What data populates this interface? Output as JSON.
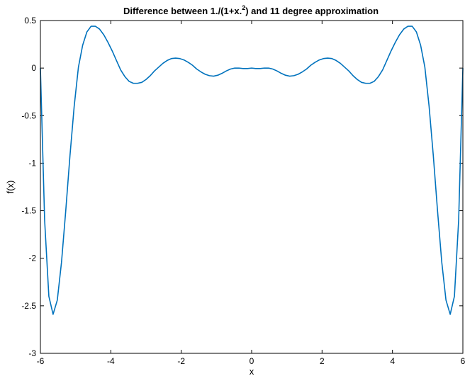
{
  "chart_data": {
    "type": "line",
    "title": {
      "prefix": "Difference between 1./(1+x.",
      "superscript": "2",
      "suffix": ") and 11 degree approximation"
    },
    "xlabel": "x",
    "ylabel": "f(x)",
    "xlim": [
      -6,
      6
    ],
    "ylim": [
      -3,
      0.5
    ],
    "xticks": [
      -6,
      -4,
      -2,
      0,
      2,
      4,
      6
    ],
    "xtick_labels": [
      "-6",
      "-4",
      "-2",
      "0",
      "2",
      "4",
      "6"
    ],
    "yticks": [
      -3,
      -2.5,
      -2,
      -1.5,
      -1,
      -0.5,
      0,
      0.5
    ],
    "ytick_labels": [
      "-3",
      "-2.5",
      "-2",
      "-1.5",
      "-1",
      "-0.5",
      "0",
      "0.5"
    ],
    "grid": false,
    "colors": {
      "line": "#0072BD",
      "axes": "#000000",
      "background": "#ffffff"
    },
    "series": [
      {
        "x": [
          -6,
          -5.88,
          -5.76,
          -5.64,
          -5.52,
          -5.4,
          -5.28,
          -5.16,
          -5.04,
          -4.92,
          -4.8,
          -4.68,
          -4.56,
          -4.44,
          -4.32,
          -4.2,
          -4.08,
          -3.96,
          -3.84,
          -3.72,
          -3.6,
          -3.48,
          -3.36,
          -3.24,
          -3.12,
          -3.0,
          -2.88,
          -2.76,
          -2.64,
          -2.52,
          -2.4,
          -2.28,
          -2.16,
          -2.04,
          -1.92,
          -1.8,
          -1.68,
          -1.56,
          -1.44,
          -1.32,
          -1.2,
          -1.08,
          -0.96,
          -0.84,
          -0.72,
          -0.6,
          -0.48,
          -0.36,
          -0.24,
          -0.12,
          0,
          0.12,
          0.24,
          0.36,
          0.48,
          0.6,
          0.72,
          0.84,
          0.96,
          1.08,
          1.2,
          1.32,
          1.44,
          1.56,
          1.68,
          1.8,
          1.92,
          2.04,
          2.16,
          2.28,
          2.4,
          2.52,
          2.64,
          2.76,
          2.88,
          3.0,
          3.12,
          3.24,
          3.36,
          3.48,
          3.6,
          3.72,
          3.84,
          3.96,
          4.08,
          4.2,
          4.32,
          4.44,
          4.56,
          4.68,
          4.8,
          4.92,
          5.04,
          5.16,
          5.28,
          5.4,
          5.52,
          5.64,
          5.76,
          5.88,
          6
        ],
        "y": [
          0,
          -1.6,
          -2.4,
          -2.59,
          -2.44,
          -2.04,
          -1.5,
          -0.92,
          -0.4,
          0.01,
          0.24,
          0.38,
          0.44,
          0.44,
          0.41,
          0.35,
          0.27,
          0.18,
          0.08,
          -0.02,
          -0.09,
          -0.14,
          -0.16,
          -0.16,
          -0.15,
          -0.12,
          -0.08,
          -0.03,
          0.01,
          0.05,
          0.08,
          0.1,
          0.105,
          0.1,
          0.085,
          0.06,
          0.03,
          -0.01,
          -0.04,
          -0.065,
          -0.08,
          -0.085,
          -0.075,
          -0.055,
          -0.03,
          -0.01,
          0.0,
          0.0,
          -0.005,
          -0.005,
          0,
          -0.005,
          -0.005,
          0.0,
          0.0,
          -0.01,
          -0.03,
          -0.055,
          -0.075,
          -0.085,
          -0.08,
          -0.065,
          -0.04,
          -0.01,
          0.03,
          0.06,
          0.085,
          0.1,
          0.105,
          0.1,
          0.08,
          0.05,
          0.01,
          -0.03,
          -0.08,
          -0.12,
          -0.15,
          -0.16,
          -0.16,
          -0.14,
          -0.09,
          -0.02,
          0.08,
          0.18,
          0.27,
          0.35,
          0.41,
          0.44,
          0.44,
          0.38,
          0.24,
          0.01,
          -0.4,
          -0.92,
          -1.5,
          -2.04,
          -2.44,
          -2.59,
          -2.4,
          -1.6,
          0
        ]
      }
    ]
  }
}
